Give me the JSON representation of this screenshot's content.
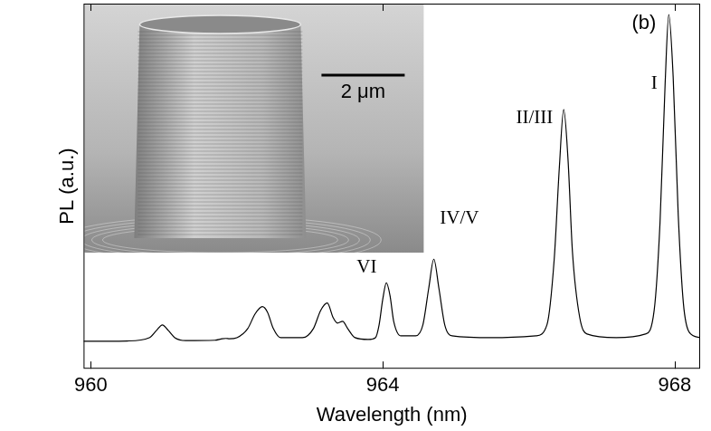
{
  "chart_data": {
    "type": "line",
    "x_label": "Wavelength (nm)",
    "y_label": "PL (a.u.)",
    "color": "#000000",
    "xlim": [
      959.9,
      968.35
    ],
    "xticks": [
      960,
      964,
      968
    ],
    "ylim": [
      0,
      1
    ],
    "tick_labels": "x",
    "grid": false,
    "panel_label": "(b)",
    "panel_label_position": {
      "x": 967.58,
      "y": 0.946
    },
    "inset_scale_label": "2 μm",
    "annotations": [
      {
        "text": "I",
        "x": 967.72,
        "y": 0.78
      },
      {
        "text": "II/III",
        "x": 966.08,
        "y": 0.686
      },
      {
        "text": "IV/V",
        "x": 965.05,
        "y": 0.41
      },
      {
        "text": "VI",
        "x": 963.78,
        "y": 0.277
      }
    ],
    "x": [
      959.9,
      960.5,
      960.8,
      960.9,
      960.98,
      961.06,
      961.15,
      961.3,
      961.7,
      961.8,
      961.85,
      961.9,
      962.0,
      962.15,
      962.25,
      962.35,
      962.42,
      962.5,
      962.6,
      962.9,
      963.05,
      963.15,
      963.24,
      963.32,
      963.38,
      963.45,
      963.52,
      963.62,
      963.8,
      963.9,
      963.95,
      964.0,
      964.05,
      964.1,
      964.15,
      964.25,
      964.45,
      964.55,
      964.63,
      964.7,
      964.77,
      964.85,
      964.95,
      965.5,
      966.1,
      966.25,
      966.35,
      966.42,
      966.48,
      966.54,
      966.6,
      966.7,
      966.8,
      967.2,
      967.6,
      967.72,
      967.8,
      967.87,
      967.92,
      967.98,
      968.05,
      968.12,
      968.2,
      968.35
    ],
    "values": [
      0.075,
      0.076,
      0.085,
      0.105,
      0.12,
      0.105,
      0.085,
      0.077,
      0.078,
      0.082,
      0.083,
      0.082,
      0.085,
      0.11,
      0.15,
      0.17,
      0.155,
      0.11,
      0.085,
      0.085,
      0.11,
      0.16,
      0.18,
      0.14,
      0.125,
      0.13,
      0.11,
      0.085,
      0.08,
      0.085,
      0.12,
      0.19,
      0.235,
      0.2,
      0.13,
      0.09,
      0.09,
      0.12,
      0.22,
      0.3,
      0.22,
      0.12,
      0.09,
      0.085,
      0.09,
      0.12,
      0.3,
      0.55,
      0.71,
      0.57,
      0.32,
      0.14,
      0.095,
      0.085,
      0.095,
      0.16,
      0.4,
      0.78,
      0.97,
      0.8,
      0.42,
      0.18,
      0.1,
      0.085
    ]
  }
}
